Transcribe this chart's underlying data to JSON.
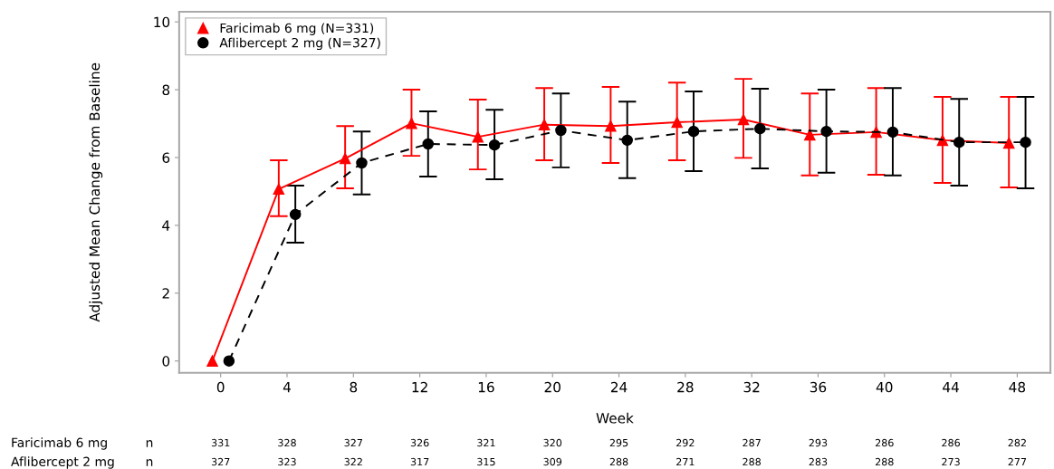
{
  "chart_data": {
    "type": "line",
    "xlabel": "Week",
    "ylabel": "Adjusted Mean Change from Baseline",
    "xlim": [
      -2.5,
      50
    ],
    "xticks": [
      0,
      4,
      8,
      12,
      16,
      20,
      24,
      28,
      32,
      36,
      40,
      44,
      48
    ],
    "ylim": [
      -0.35,
      10.3
    ],
    "yticks": [
      0,
      2,
      4,
      6,
      8,
      10
    ],
    "grid": false,
    "legend": "top left",
    "series": [
      {
        "name": "Faricimab 6 mg (N=331)",
        "color": "#ff0000",
        "marker": "triangle",
        "line_style": "solid",
        "x": [
          -0.5,
          3.5,
          7.5,
          11.5,
          15.5,
          19.5,
          23.5,
          27.5,
          31.5,
          35.5,
          39.5,
          43.5,
          47.5
        ],
        "values": [
          0,
          5.07,
          5.97,
          7.01,
          6.61,
          6.97,
          6.93,
          7.04,
          7.12,
          6.67,
          6.75,
          6.51,
          6.43
        ],
        "errors": [
          null,
          [
            4.27,
            5.92
          ],
          [
            5.09,
            6.93
          ],
          [
            6.05,
            8.0
          ],
          [
            5.65,
            7.71
          ],
          [
            5.92,
            8.05
          ],
          [
            5.84,
            8.08
          ],
          [
            5.92,
            8.21
          ],
          [
            5.99,
            8.32
          ],
          [
            5.47,
            7.89
          ],
          [
            5.49,
            8.05
          ],
          [
            5.25,
            7.79
          ],
          [
            5.12,
            7.79
          ]
        ]
      },
      {
        "name": "Aflibercept 2 mg (N=327)",
        "color": "#000000",
        "marker": "circle",
        "line_style": "dashed",
        "x": [
          0.5,
          4.5,
          8.5,
          12.5,
          16.5,
          20.5,
          24.5,
          28.5,
          32.5,
          36.5,
          40.5,
          44.5,
          48.5
        ],
        "values": [
          0,
          4.32,
          5.84,
          6.4,
          6.37,
          6.8,
          6.51,
          6.77,
          6.85,
          6.77,
          6.75,
          6.45,
          6.45
        ],
        "errors": [
          null,
          [
            3.49,
            5.17
          ],
          [
            4.91,
            6.77
          ],
          [
            5.44,
            7.36
          ],
          [
            5.36,
            7.41
          ],
          [
            5.71,
            7.89
          ],
          [
            5.39,
            7.65
          ],
          [
            5.6,
            7.95
          ],
          [
            5.68,
            8.03
          ],
          [
            5.55,
            8.0
          ],
          [
            5.47,
            8.05
          ],
          [
            5.17,
            7.73
          ],
          [
            5.09,
            7.79
          ]
        ]
      }
    ],
    "annotations": [
      "Faricimab 6 mg",
      "n",
      "331",
      "328",
      "327",
      "326",
      "321",
      "320",
      "295",
      "292",
      "287",
      "293",
      "286",
      "286",
      "282",
      "Aflibercept 2 mg",
      "n",
      "327",
      "323",
      "322",
      "317",
      "315",
      "309",
      "288",
      "271",
      "288",
      "283",
      "288",
      "273",
      "277"
    ]
  }
}
